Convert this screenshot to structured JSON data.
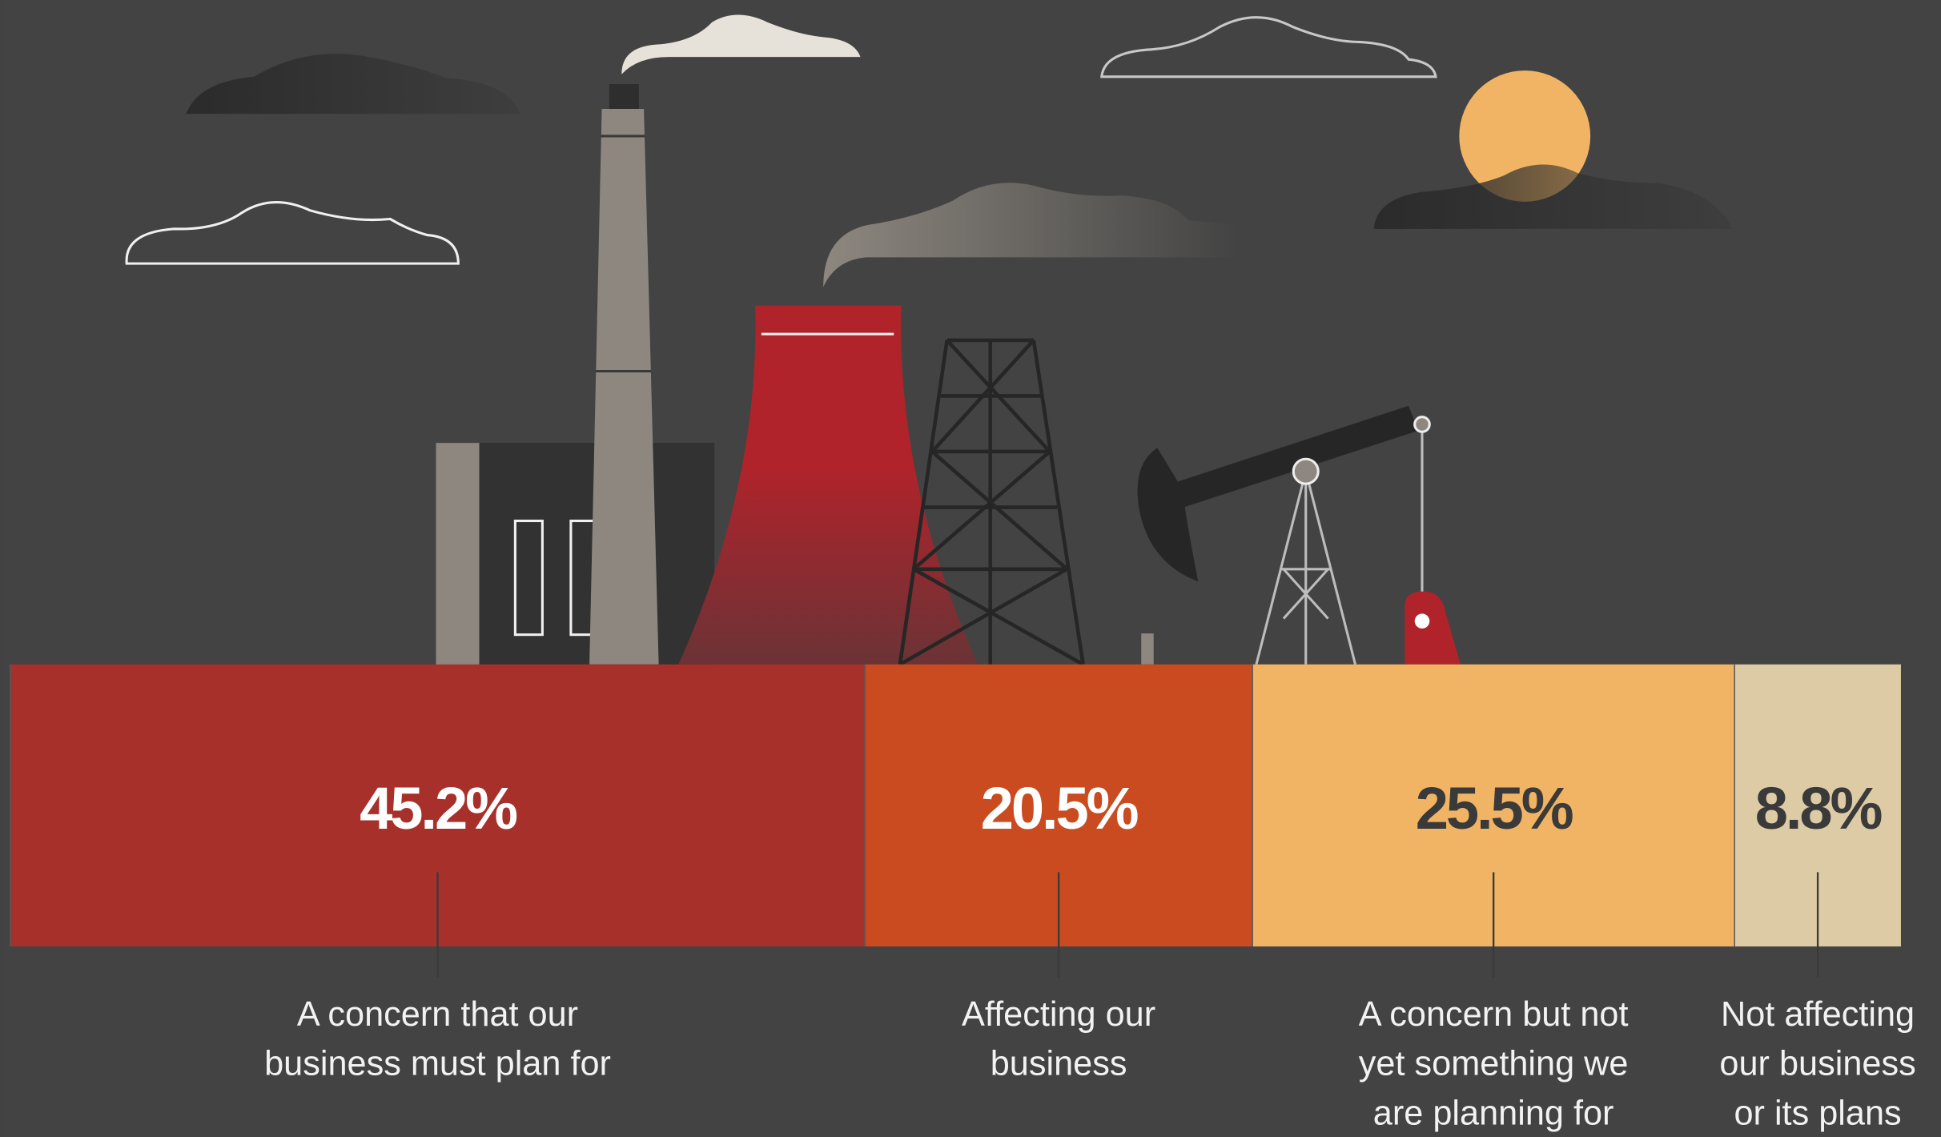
{
  "chart_data": {
    "type": "stacked-bar",
    "series": [
      {
        "name": "A concern that our business must plan for",
        "color": "#a8302a",
        "label_color": "#ffffff",
        "values": [
          45.2
        ],
        "value_labels": [
          "45.2%"
        ]
      },
      {
        "name": "Affecting our business",
        "color": "#c94b1f",
        "label_color": "#ffffff",
        "values": [
          20.5
        ],
        "value_labels": [
          "20.5%"
        ]
      },
      {
        "name": "A concern but not yet something we are planning for",
        "color": "#f0b464",
        "label_color": "#3a3a3a",
        "values": [
          25.5
        ],
        "value_labels": [
          "25.5%"
        ]
      },
      {
        "name": "Not affecting our business or its plans",
        "color": "#dccba4",
        "label_color": "#3a3a3a",
        "values": [
          8.8
        ],
        "value_labels": [
          "8.8%"
        ]
      }
    ]
  }
}
